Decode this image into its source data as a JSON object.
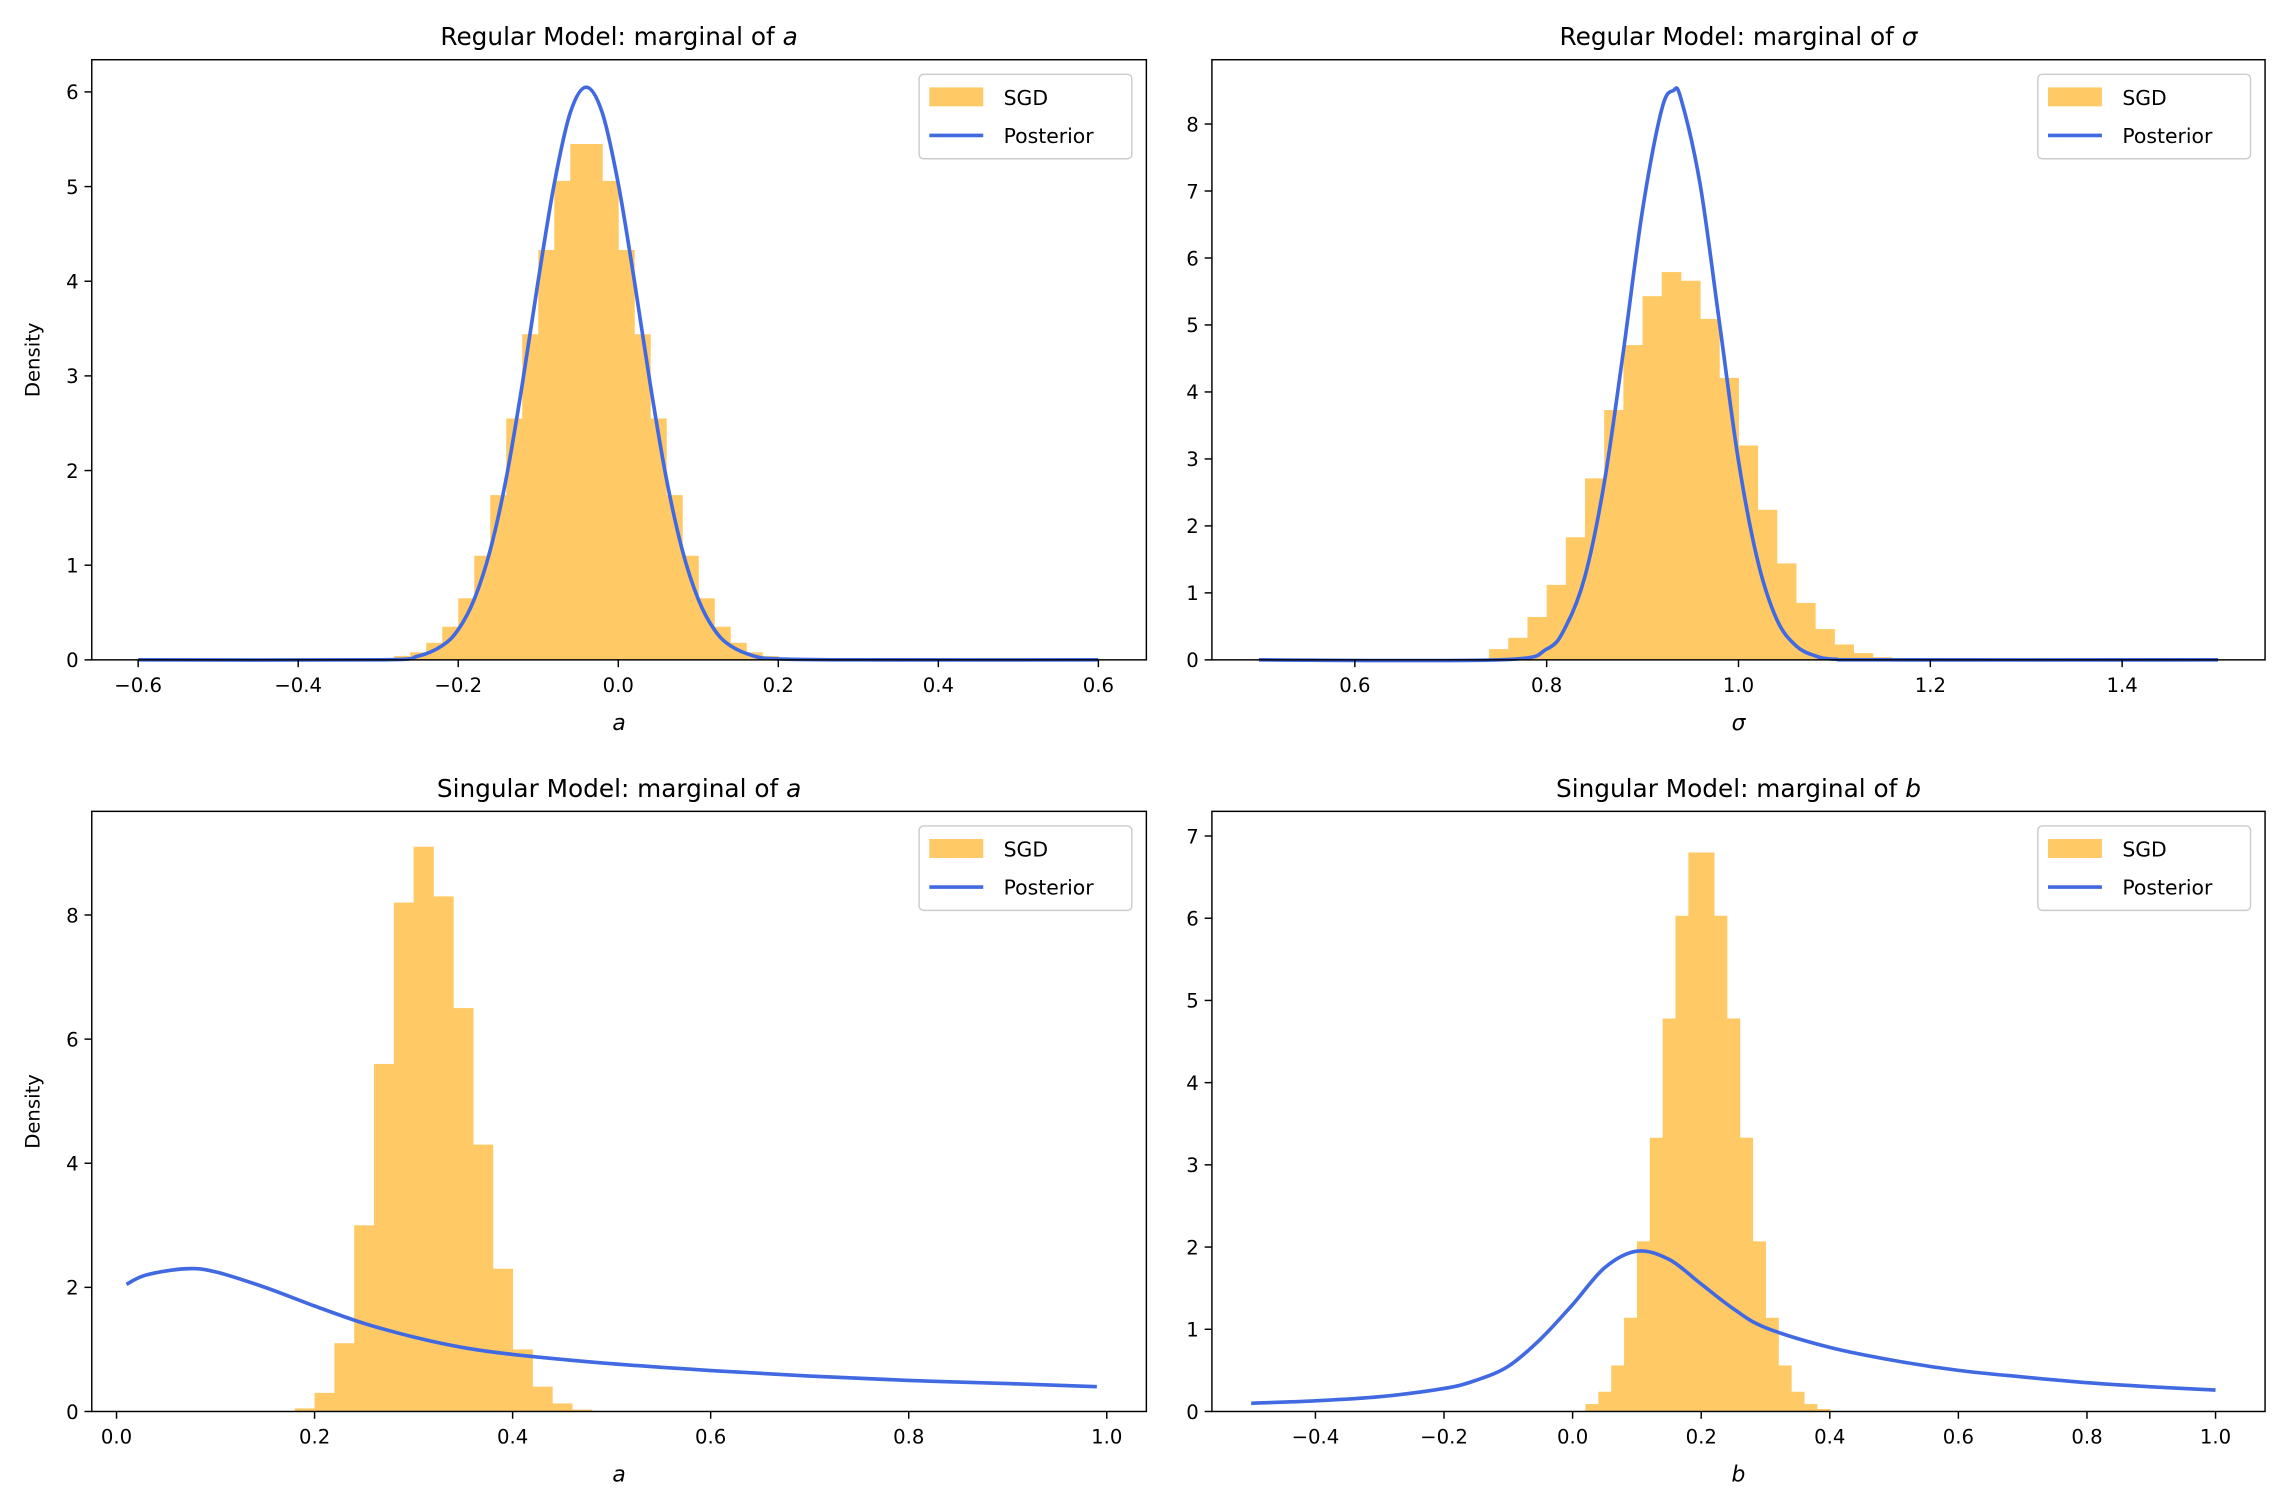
{
  "colors": {
    "sgd": "#ffc966",
    "posterior": "#4169e1",
    "axis": "#000000",
    "legend_border": "#cccccc"
  },
  "legend": {
    "sgd_label": "SGD",
    "posterior_label": "Posterior",
    "placement": "top-right"
  },
  "chart_data": [
    {
      "type": "bar+line",
      "title_prefix": "Regular Model: marginal of ",
      "title_var": "a",
      "xlabel": "a",
      "ylabel": "Density",
      "xlim": [
        -0.658,
        0.66
      ],
      "ylim": [
        0,
        6.34
      ],
      "xticks": [
        -0.6,
        -0.4,
        -0.2,
        0.0,
        0.2,
        0.4,
        0.6
      ],
      "xtick_labels": [
        "−0.6",
        "−0.4",
        "−0.2",
        "0.0",
        "0.2",
        "0.4",
        "0.6"
      ],
      "yticks": [
        0,
        1,
        2,
        3,
        4,
        5,
        6
      ],
      "ytick_labels": [
        "0",
        "1",
        "2",
        "3",
        "4",
        "5",
        "6"
      ],
      "histogram": {
        "name": "SGD",
        "bin_width": 0.02,
        "bin_centers": [
          -0.27,
          -0.25,
          -0.23,
          -0.21,
          -0.19,
          -0.17,
          -0.15,
          -0.13,
          -0.11,
          -0.09,
          -0.07,
          -0.05,
          -0.03,
          -0.01,
          0.01,
          0.03,
          0.05,
          0.07,
          0.09,
          0.11,
          0.13,
          0.15,
          0.17,
          0.19
        ],
        "density": [
          0.04,
          0.08,
          0.18,
          0.35,
          0.65,
          1.1,
          1.74,
          2.55,
          3.44,
          4.33,
          5.06,
          5.45,
          5.45,
          5.06,
          4.33,
          3.44,
          2.55,
          1.74,
          1.1,
          0.65,
          0.35,
          0.18,
          0.08,
          0.04
        ]
      },
      "posterior": {
        "name": "Posterior",
        "x": [
          -0.6,
          -0.3,
          -0.25,
          -0.22,
          -0.2,
          -0.18,
          -0.16,
          -0.14,
          -0.12,
          -0.1,
          -0.08,
          -0.06,
          -0.04,
          -0.02,
          0.0,
          0.02,
          0.04,
          0.06,
          0.08,
          0.1,
          0.12,
          0.14,
          0.17,
          0.2,
          0.3,
          0.6
        ],
        "y": [
          0,
          0,
          0.04,
          0.15,
          0.32,
          0.64,
          1.16,
          1.92,
          2.91,
          4.01,
          5.03,
          5.78,
          6.05,
          5.78,
          5.03,
          4.01,
          2.91,
          1.92,
          1.16,
          0.64,
          0.32,
          0.15,
          0.04,
          0.01,
          0,
          0
        ]
      }
    },
    {
      "type": "bar+line",
      "title_prefix": "Regular Model: marginal of ",
      "title_var": "σ",
      "xlabel": "σ",
      "ylabel": "",
      "xlim": [
        0.451,
        1.549
      ],
      "ylim": [
        0,
        8.96
      ],
      "xticks": [
        0.6,
        0.8,
        1.0,
        1.2,
        1.4
      ],
      "xtick_labels": [
        "0.6",
        "0.8",
        "1.0",
        "1.2",
        "1.4"
      ],
      "yticks": [
        0,
        1,
        2,
        3,
        4,
        5,
        6,
        7,
        8
      ],
      "ytick_labels": [
        "0",
        "1",
        "2",
        "3",
        "4",
        "5",
        "6",
        "7",
        "8"
      ],
      "histogram": {
        "name": "SGD",
        "bin_width": 0.02,
        "bin_centers": [
          0.75,
          0.77,
          0.79,
          0.81,
          0.83,
          0.85,
          0.87,
          0.89,
          0.91,
          0.93,
          0.95,
          0.97,
          0.99,
          1.01,
          1.03,
          1.05,
          1.07,
          1.09,
          1.11,
          1.13,
          1.15
        ],
        "density": [
          0.16,
          0.33,
          0.64,
          1.12,
          1.83,
          2.71,
          3.73,
          4.7,
          5.43,
          5.79,
          5.66,
          5.09,
          4.21,
          3.2,
          2.24,
          1.44,
          0.85,
          0.46,
          0.23,
          0.1,
          0.04
        ]
      },
      "posterior": {
        "name": "Posterior",
        "x": [
          0.5,
          0.75,
          0.8,
          0.82,
          0.84,
          0.86,
          0.88,
          0.9,
          0.92,
          0.932,
          0.94,
          0.96,
          0.98,
          1.0,
          1.02,
          1.04,
          1.06,
          1.08,
          1.1,
          1.15,
          1.5
        ],
        "y": [
          0,
          0,
          0.16,
          0.5,
          1.25,
          2.64,
          4.61,
          6.72,
          8.22,
          8.5,
          8.38,
          7.1,
          5.05,
          2.97,
          1.48,
          0.6,
          0.21,
          0.06,
          0.01,
          0,
          0
        ]
      }
    },
    {
      "type": "bar+line",
      "title_prefix": "Singular Model: marginal of ",
      "title_var": "a",
      "xlabel": "a",
      "ylabel": "Density",
      "xlim": [
        -0.025,
        1.04
      ],
      "ylim": [
        0,
        9.67
      ],
      "xticks": [
        0.0,
        0.2,
        0.4,
        0.6,
        0.8,
        1.0
      ],
      "xtick_labels": [
        "0.0",
        "0.2",
        "0.4",
        "0.6",
        "0.8",
        "1.0"
      ],
      "yticks": [
        0,
        2,
        4,
        6,
        8
      ],
      "ytick_labels": [
        "0",
        "2",
        "4",
        "6",
        "8"
      ],
      "histogram": {
        "name": "SGD",
        "bin_width": 0.02,
        "bin_centers": [
          0.19,
          0.21,
          0.23,
          0.25,
          0.27,
          0.29,
          0.31,
          0.33,
          0.35,
          0.37,
          0.39,
          0.41,
          0.43,
          0.45,
          0.47
        ],
        "density": [
          0.05,
          0.3,
          1.1,
          3.0,
          5.6,
          8.2,
          9.1,
          8.3,
          6.5,
          4.3,
          2.3,
          1.0,
          0.4,
          0.13,
          0.03
        ]
      },
      "posterior": {
        "name": "Posterior",
        "x": [
          0.01,
          0.03,
          0.07,
          0.1,
          0.15,
          0.2,
          0.25,
          0.3,
          0.35,
          0.4,
          0.5,
          0.6,
          0.7,
          0.8,
          0.9,
          0.99
        ],
        "y": [
          2.05,
          2.2,
          2.3,
          2.25,
          2.0,
          1.7,
          1.42,
          1.2,
          1.03,
          0.92,
          0.77,
          0.66,
          0.57,
          0.5,
          0.45,
          0.4
        ]
      }
    },
    {
      "type": "bar+line",
      "title_prefix": "Singular Model: marginal of ",
      "title_var": "b",
      "xlabel": "b",
      "ylabel": "",
      "xlim": [
        -0.561,
        1.077
      ],
      "ylim": [
        0,
        7.3
      ],
      "xticks": [
        -0.4,
        -0.2,
        0.0,
        0.2,
        0.4,
        0.6,
        0.8,
        1.0
      ],
      "xtick_labels": [
        "−0.4",
        "−0.2",
        "0.0",
        "0.2",
        "0.4",
        "0.6",
        "0.8",
        "1.0"
      ],
      "yticks": [
        0,
        1,
        2,
        3,
        4,
        5,
        6,
        7
      ],
      "ytick_labels": [
        "0",
        "1",
        "2",
        "3",
        "4",
        "5",
        "6",
        "7"
      ],
      "histogram": {
        "name": "SGD",
        "bin_width": 0.02,
        "bin_centers": [
          0.03,
          0.05,
          0.07,
          0.09,
          0.11,
          0.13,
          0.15,
          0.17,
          0.19,
          0.21,
          0.23,
          0.25,
          0.27,
          0.29,
          0.31,
          0.33,
          0.35,
          0.37,
          0.39
        ],
        "density": [
          0.09,
          0.24,
          0.56,
          1.14,
          2.07,
          3.33,
          4.78,
          6.03,
          6.8,
          6.8,
          6.03,
          4.78,
          3.33,
          2.07,
          1.14,
          0.56,
          0.24,
          0.09,
          0.03
        ]
      },
      "posterior": {
        "name": "Posterior",
        "x": [
          -0.5,
          -0.4,
          -0.3,
          -0.2,
          -0.15,
          -0.1,
          -0.05,
          0.0,
          0.05,
          0.1,
          0.15,
          0.2,
          0.25,
          0.3,
          0.4,
          0.5,
          0.6,
          0.7,
          0.8,
          0.9,
          1.0
        ],
        "y": [
          0.1,
          0.13,
          0.18,
          0.28,
          0.38,
          0.55,
          0.88,
          1.3,
          1.75,
          1.95,
          1.85,
          1.55,
          1.25,
          1.02,
          0.78,
          0.62,
          0.5,
          0.42,
          0.35,
          0.3,
          0.26
        ]
      }
    }
  ]
}
